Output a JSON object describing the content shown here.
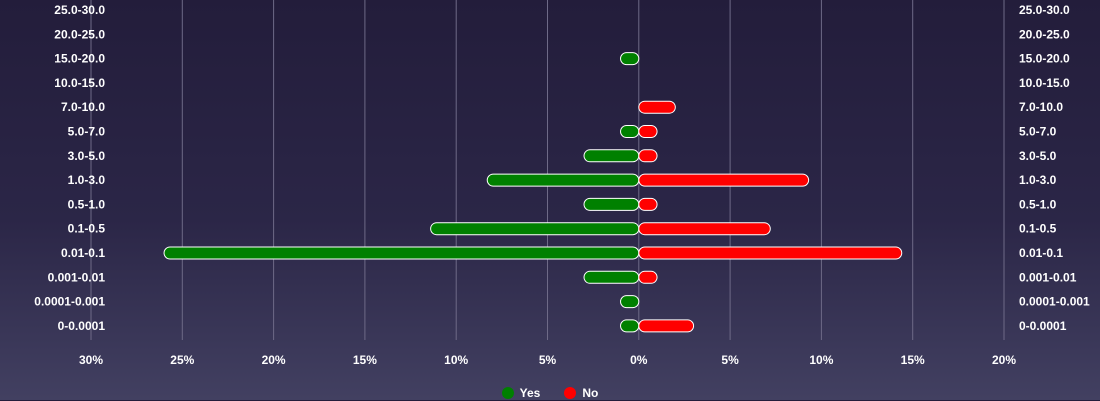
{
  "chart_data": {
    "type": "bar",
    "orientation": "horizontal-diverging",
    "title": "",
    "xlabel": "",
    "ylabel": "",
    "categories": [
      "25.0-30.0",
      "20.0-25.0",
      "15.0-20.0",
      "10.0-15.0",
      "7.0-10.0",
      "5.0-7.0",
      "3.0-5.0",
      "1.0-3.0",
      "0.5-1.0",
      "0.1-0.5",
      "0.01-0.1",
      "0.001-0.01",
      "0.0001-0.001",
      "0-0.0001"
    ],
    "series": [
      {
        "name": "Yes",
        "direction": "left",
        "color": "#008000",
        "values": [
          0,
          0,
          1,
          0,
          0,
          1,
          3,
          8.3,
          3,
          11.4,
          26,
          3,
          1,
          1
        ]
      },
      {
        "name": "No",
        "direction": "right",
        "color": "#ff0000",
        "values": [
          0,
          0,
          0,
          0,
          2,
          1,
          1,
          9.3,
          1,
          7.2,
          14.4,
          1,
          0,
          3
        ]
      }
    ],
    "x_ticks": [
      {
        "value": -30,
        "label": "30%"
      },
      {
        "value": -25,
        "label": "25%"
      },
      {
        "value": -20,
        "label": "20%"
      },
      {
        "value": -15,
        "label": "15%"
      },
      {
        "value": -10,
        "label": "10%"
      },
      {
        "value": -5,
        "label": "5%"
      },
      {
        "value": 0,
        "label": "0%"
      },
      {
        "value": 5,
        "label": "5%"
      },
      {
        "value": 10,
        "label": "10%"
      },
      {
        "value": 15,
        "label": "15%"
      },
      {
        "value": 20,
        "label": "20%"
      }
    ],
    "xlim": [
      -30,
      20
    ],
    "unit": "%",
    "grid": true,
    "legend_position": "bottom-center"
  },
  "legend": {
    "yes_label": "Yes",
    "no_label": "No",
    "yes_color": "#008000",
    "no_color": "#ff0000"
  }
}
